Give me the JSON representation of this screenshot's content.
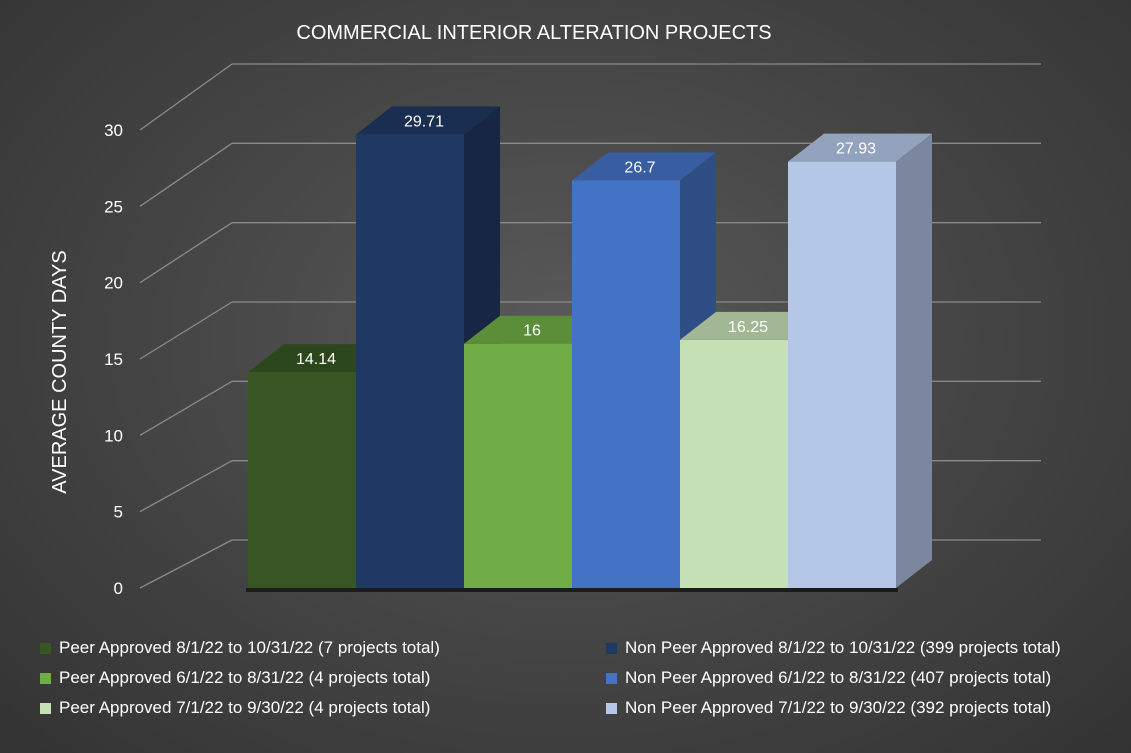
{
  "chart_data": {
    "type": "bar",
    "title": "COMMERCIAL INTERIOR ALTERATION PROJECTS",
    "ylabel": "AVERAGE COUNTY DAYS",
    "xlabel": "",
    "ylim": [
      0,
      30
    ],
    "yticks": [
      0,
      5,
      10,
      15,
      20,
      25,
      30
    ],
    "grid": true,
    "legend": "bottom",
    "three_d": true,
    "series": [
      {
        "name": "Peer Approved 8/1/22 to 10/31/22 (7 projects total)",
        "value": 14.14,
        "label": "14.14",
        "color": "#375623"
      },
      {
        "name": "Non Peer Approved 8/1/22 to 10/31/22 (399 projects total)",
        "value": 29.71,
        "label": "29.71",
        "color": "#203864"
      },
      {
        "name": "Peer Approved 6/1/22 to 8/31/22 (4 projects total)",
        "value": 16,
        "label": "16",
        "color": "#70AD47"
      },
      {
        "name": "Non Peer Approved 6/1/22 to 8/31/22 (407 projects total)",
        "value": 26.7,
        "label": "26.7",
        "color": "#4472C4"
      },
      {
        "name": "Peer Approved 7/1/22 to 9/30/22 (4 projects total)",
        "value": 16.25,
        "label": "16.25",
        "color": "#C5E0B4"
      },
      {
        "name": "Non Peer Approved 7/1/22 to 9/30/22 (392 projects total)",
        "value": 27.93,
        "label": "27.93",
        "color": "#B4C7E7"
      }
    ]
  }
}
